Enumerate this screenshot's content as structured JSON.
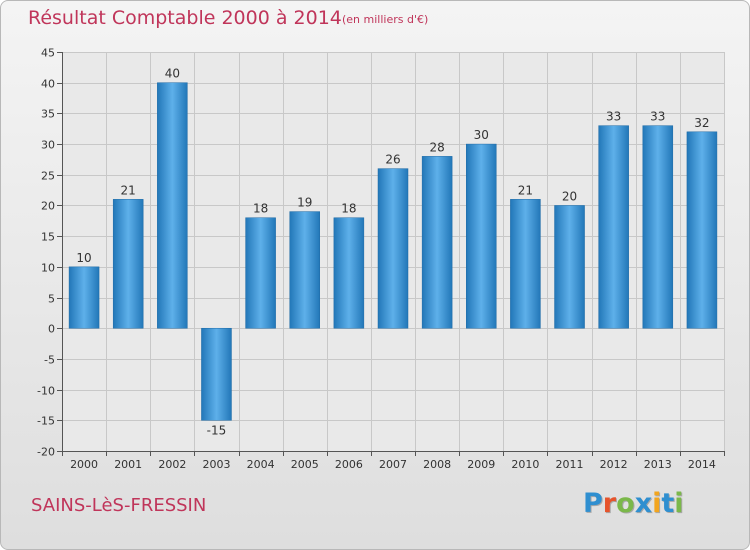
{
  "header": {
    "title": "Résultat Comptable 2000 à 2014",
    "subtitle": "(en milliers d'€)"
  },
  "footer": {
    "town": "SAINS-LèS-FRESSIN",
    "logo": {
      "text": "Proxiti",
      "letter_colors": [
        "#2f8fd0",
        "#e6542c",
        "#7bb84a",
        "#2f8fd0",
        "#f2a51f",
        "#2f8fd0",
        "#7bb84a"
      ]
    }
  },
  "colors": {
    "title": "#c0355a",
    "bar_light": "#5eb0ea",
    "bar_dark": "#2277b8",
    "grid": "#c8c8c8",
    "axis": "#555555"
  },
  "chart_data": {
    "type": "bar",
    "categories": [
      "2000",
      "2001",
      "2002",
      "2003",
      "2004",
      "2005",
      "2006",
      "2007",
      "2008",
      "2009",
      "2010",
      "2011",
      "2012",
      "2013",
      "2014"
    ],
    "values": [
      10,
      21,
      40,
      -15,
      18,
      19,
      18,
      26,
      28,
      30,
      21,
      20,
      33,
      33,
      32
    ],
    "ylim": [
      -20,
      45
    ],
    "yticks": [
      -20,
      -15,
      -10,
      -5,
      0,
      5,
      10,
      15,
      20,
      25,
      30,
      35,
      40,
      45
    ],
    "grid": true,
    "legend": false
  }
}
